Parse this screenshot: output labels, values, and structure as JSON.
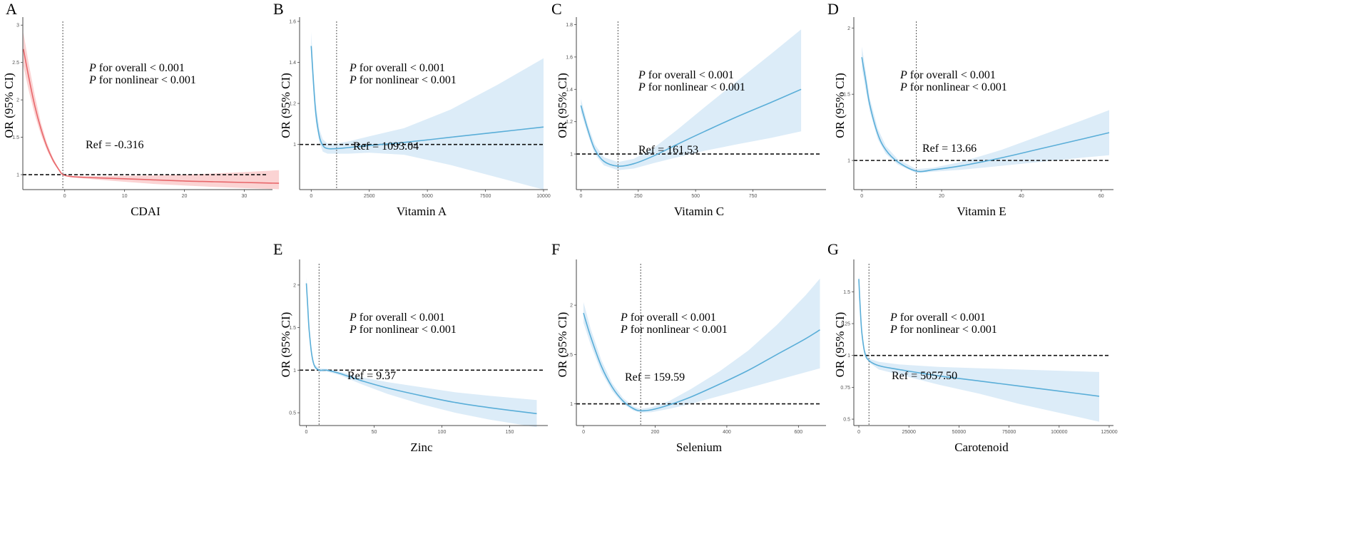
{
  "figure": {
    "caption": ""
  },
  "stat_labels": {
    "p_symbol": "P",
    "overall_text": " for overall < 0.001",
    "nonlinear_text": " for nonlinear < 0.001"
  },
  "colors": {
    "red_line": "#e8676b",
    "red_band": "#fbd3d3",
    "blue_line": "#5aaed8",
    "blue_band": "#dcecf8"
  },
  "chart_data": [
    {
      "id": "A",
      "letter": "A",
      "type": "line",
      "title": "",
      "xlabel": "CDAI",
      "ylabel": "OR (95% CI)",
      "color": "red",
      "xlim": [
        -7,
        34
      ],
      "ylim": [
        0.8,
        3.05
      ],
      "xticks": [
        0,
        10,
        20,
        30
      ],
      "yticks": [
        1.0,
        1.5,
        2.0,
        2.5,
        3.0
      ],
      "ref_x": -0.316,
      "ref_y": 1.0,
      "ref_label": "Ref = -0.316",
      "p_overall": "< 0.001",
      "p_nonlinear": "< 0.001",
      "x": [
        -6.9,
        -6,
        -5,
        -4,
        -3,
        -2,
        -1,
        -0.316,
        1,
        3,
        6,
        10,
        15,
        20,
        25,
        30,
        35.8
      ],
      "y": [
        2.68,
        2.3,
        1.92,
        1.62,
        1.38,
        1.2,
        1.07,
        1.0,
        0.975,
        0.965,
        0.955,
        0.945,
        0.93,
        0.915,
        0.905,
        0.895,
        0.885
      ],
      "lower": [
        2.45,
        2.12,
        1.8,
        1.54,
        1.33,
        1.17,
        1.055,
        1.0,
        0.965,
        0.95,
        0.93,
        0.905,
        0.875,
        0.855,
        0.835,
        0.82,
        0.805
      ],
      "upper": [
        2.9,
        2.48,
        2.06,
        1.7,
        1.43,
        1.23,
        1.085,
        1.0,
        0.985,
        0.98,
        0.98,
        0.985,
        0.99,
        1.0,
        1.015,
        1.035,
        1.06
      ]
    },
    {
      "id": "B",
      "letter": "B",
      "type": "line",
      "title": "",
      "xlabel": "Vitamin A",
      "ylabel": "OR (95% CI)",
      "color": "blue",
      "xlim": [
        -500,
        10000
      ],
      "ylim": [
        0.78,
        1.6
      ],
      "xticks": [
        0,
        2500,
        5000,
        7500,
        10000
      ],
      "yticks": [
        1.0,
        1.2,
        1.4,
        1.6
      ],
      "ref_x": 1093.04,
      "ref_y": 1.0,
      "ref_label": "Ref = 1093.04",
      "p_overall": "< 0.001",
      "p_nonlinear": "< 0.001",
      "x": [
        0,
        100,
        200,
        350,
        500,
        700,
        1093.04,
        1600,
        2500,
        4000,
        6000,
        8000,
        10000
      ],
      "y": [
        1.48,
        1.3,
        1.15,
        1.04,
        0.995,
        0.98,
        0.98,
        0.985,
        0.995,
        1.01,
        1.035,
        1.06,
        1.085
      ],
      "lower": [
        1.42,
        1.25,
        1.11,
        1.01,
        0.965,
        0.955,
        0.955,
        0.955,
        0.96,
        0.95,
        0.9,
        0.84,
        0.78
      ],
      "upper": [
        1.55,
        1.35,
        1.2,
        1.075,
        1.025,
        1.005,
        1.005,
        1.015,
        1.04,
        1.08,
        1.17,
        1.29,
        1.42
      ]
    },
    {
      "id": "C",
      "letter": "C",
      "type": "line",
      "title": "",
      "xlabel": "Vitamin C",
      "ylabel": "OR (95% CI)",
      "color": "blue",
      "xlim": [
        -20,
        1050
      ],
      "ylim": [
        0.78,
        1.82
      ],
      "xticks": [
        0,
        250,
        500,
        750
      ],
      "yticks": [
        1.0,
        1.2,
        1.4,
        1.6,
        1.8
      ],
      "ref_x": 161.53,
      "ref_y": 1.0,
      "ref_label": "Ref = 161.53",
      "p_overall": "< 0.001",
      "p_nonlinear": "< 0.001",
      "x": [
        0,
        30,
        60,
        100,
        161.53,
        230,
        320,
        420,
        540,
        680,
        830,
        960
      ],
      "y": [
        1.3,
        1.15,
        1.03,
        0.955,
        0.925,
        0.94,
        0.99,
        1.06,
        1.14,
        1.23,
        1.32,
        1.4
      ],
      "lower": [
        1.26,
        1.12,
        1.0,
        0.93,
        0.9,
        0.91,
        0.945,
        0.98,
        1.02,
        1.06,
        1.1,
        1.14
      ],
      "upper": [
        1.34,
        1.18,
        1.06,
        0.98,
        0.95,
        0.97,
        1.04,
        1.15,
        1.29,
        1.45,
        1.62,
        1.77
      ]
    },
    {
      "id": "D",
      "letter": "D",
      "type": "line",
      "title": "",
      "xlabel": "Vitamin E",
      "ylabel": "OR (95% CI)",
      "color": "blue",
      "xlim": [
        -2,
        62
      ],
      "ylim": [
        0.78,
        2.05
      ],
      "xticks": [
        0,
        20,
        40,
        60
      ],
      "yticks": [
        1.0,
        1.5,
        2.0
      ],
      "ref_x": 13.66,
      "ref_y": 1.0,
      "ref_label": "Ref = 13.66",
      "p_overall": "< 0.001",
      "p_nonlinear": "< 0.001",
      "x": [
        0,
        1,
        2,
        4,
        6,
        9,
        13.66,
        18,
        25,
        35,
        45,
        55,
        62
      ],
      "y": [
        1.78,
        1.6,
        1.42,
        1.2,
        1.08,
        0.99,
        0.92,
        0.93,
        0.96,
        1.02,
        1.09,
        1.16,
        1.21
      ],
      "lower": [
        1.7,
        1.53,
        1.37,
        1.16,
        1.05,
        0.97,
        0.905,
        0.915,
        0.93,
        0.96,
        0.99,
        1.02,
        1.04
      ],
      "upper": [
        1.86,
        1.67,
        1.47,
        1.24,
        1.11,
        1.01,
        0.935,
        0.945,
        0.99,
        1.08,
        1.19,
        1.3,
        1.38
      ]
    },
    {
      "id": "E",
      "letter": "E",
      "type": "line",
      "title": "",
      "xlabel": "Zinc",
      "ylabel": "OR (95% CI)",
      "color": "blue",
      "xlim": [
        -5,
        175
      ],
      "ylim": [
        0.35,
        2.25
      ],
      "xticks": [
        0,
        50,
        100,
        150
      ],
      "yticks": [
        0.5,
        1.0,
        1.5,
        2.0
      ],
      "ref_x": 9.37,
      "ref_y": 1.0,
      "ref_label": "Ref = 9.37",
      "p_overall": "< 0.001",
      "p_nonlinear": "< 0.001",
      "x": [
        0,
        1,
        2,
        4,
        6,
        9.37,
        15,
        25,
        40,
        60,
        85,
        110,
        135,
        170
      ],
      "y": [
        2.02,
        1.75,
        1.48,
        1.18,
        1.05,
        1.0,
        1.0,
        0.96,
        0.88,
        0.79,
        0.7,
        0.62,
        0.56,
        0.49
      ],
      "lower": [
        1.95,
        1.68,
        1.43,
        1.15,
        1.03,
        0.98,
        0.985,
        0.94,
        0.84,
        0.72,
        0.6,
        0.5,
        0.42,
        0.33
      ],
      "upper": [
        2.09,
        1.82,
        1.53,
        1.21,
        1.07,
        1.02,
        1.015,
        0.98,
        0.92,
        0.86,
        0.8,
        0.74,
        0.7,
        0.65
      ]
    },
    {
      "id": "F",
      "letter": "F",
      "type": "line",
      "title": "",
      "xlabel": "Selenium",
      "ylabel": "OR (95% CI)",
      "color": "blue",
      "xlim": [
        -20,
        665
      ],
      "ylim": [
        0.78,
        2.42
      ],
      "xticks": [
        0,
        200,
        400,
        600
      ],
      "yticks": [
        1.0,
        1.5,
        2.0
      ],
      "ref_x": 159.59,
      "ref_y": 1.0,
      "ref_label": "Ref = 159.59",
      "p_overall": "< 0.001",
      "p_nonlinear": "< 0.001",
      "x": [
        0,
        20,
        50,
        80,
        110,
        140,
        159.59,
        190,
        240,
        300,
        380,
        460,
        540,
        620,
        660
      ],
      "y": [
        1.92,
        1.68,
        1.38,
        1.17,
        1.03,
        0.95,
        0.93,
        0.94,
        0.99,
        1.07,
        1.2,
        1.34,
        1.5,
        1.66,
        1.75
      ],
      "lower": [
        1.82,
        1.6,
        1.32,
        1.13,
        1.0,
        0.93,
        0.91,
        0.915,
        0.95,
        1.0,
        1.08,
        1.16,
        1.24,
        1.32,
        1.36
      ],
      "upper": [
        2.03,
        1.76,
        1.44,
        1.21,
        1.06,
        0.97,
        0.95,
        0.965,
        1.03,
        1.15,
        1.33,
        1.54,
        1.8,
        2.1,
        2.27
      ]
    },
    {
      "id": "G",
      "letter": "G",
      "type": "line",
      "title": "",
      "xlabel": "Carotenoid",
      "ylabel": "OR (95% CI)",
      "color": "blue",
      "xlim": [
        -2500,
        125000
      ],
      "ylim": [
        0.45,
        1.72
      ],
      "xticks": [
        0,
        25000,
        50000,
        75000,
        100000,
        125000
      ],
      "yticks": [
        0.5,
        0.75,
        1.0,
        1.25,
        1.5
      ],
      "ref_x": 5057.5,
      "ref_y": 1.0,
      "ref_label": "Ref = 5057.50",
      "p_overall": "< 0.001",
      "p_nonlinear": "< 0.001",
      "x": [
        0,
        600,
        1500,
        3000,
        5057.5,
        10000,
        20000,
        40000,
        60000,
        80000,
        100000,
        120000
      ],
      "y": [
        1.6,
        1.4,
        1.18,
        1.02,
        0.96,
        0.92,
        0.89,
        0.84,
        0.8,
        0.76,
        0.72,
        0.68
      ],
      "lower": [
        1.55,
        1.36,
        1.15,
        1.0,
        0.945,
        0.89,
        0.85,
        0.77,
        0.7,
        0.62,
        0.55,
        0.48
      ],
      "upper": [
        1.65,
        1.44,
        1.21,
        1.04,
        0.975,
        0.95,
        0.93,
        0.91,
        0.9,
        0.89,
        0.88,
        0.87
      ]
    }
  ]
}
